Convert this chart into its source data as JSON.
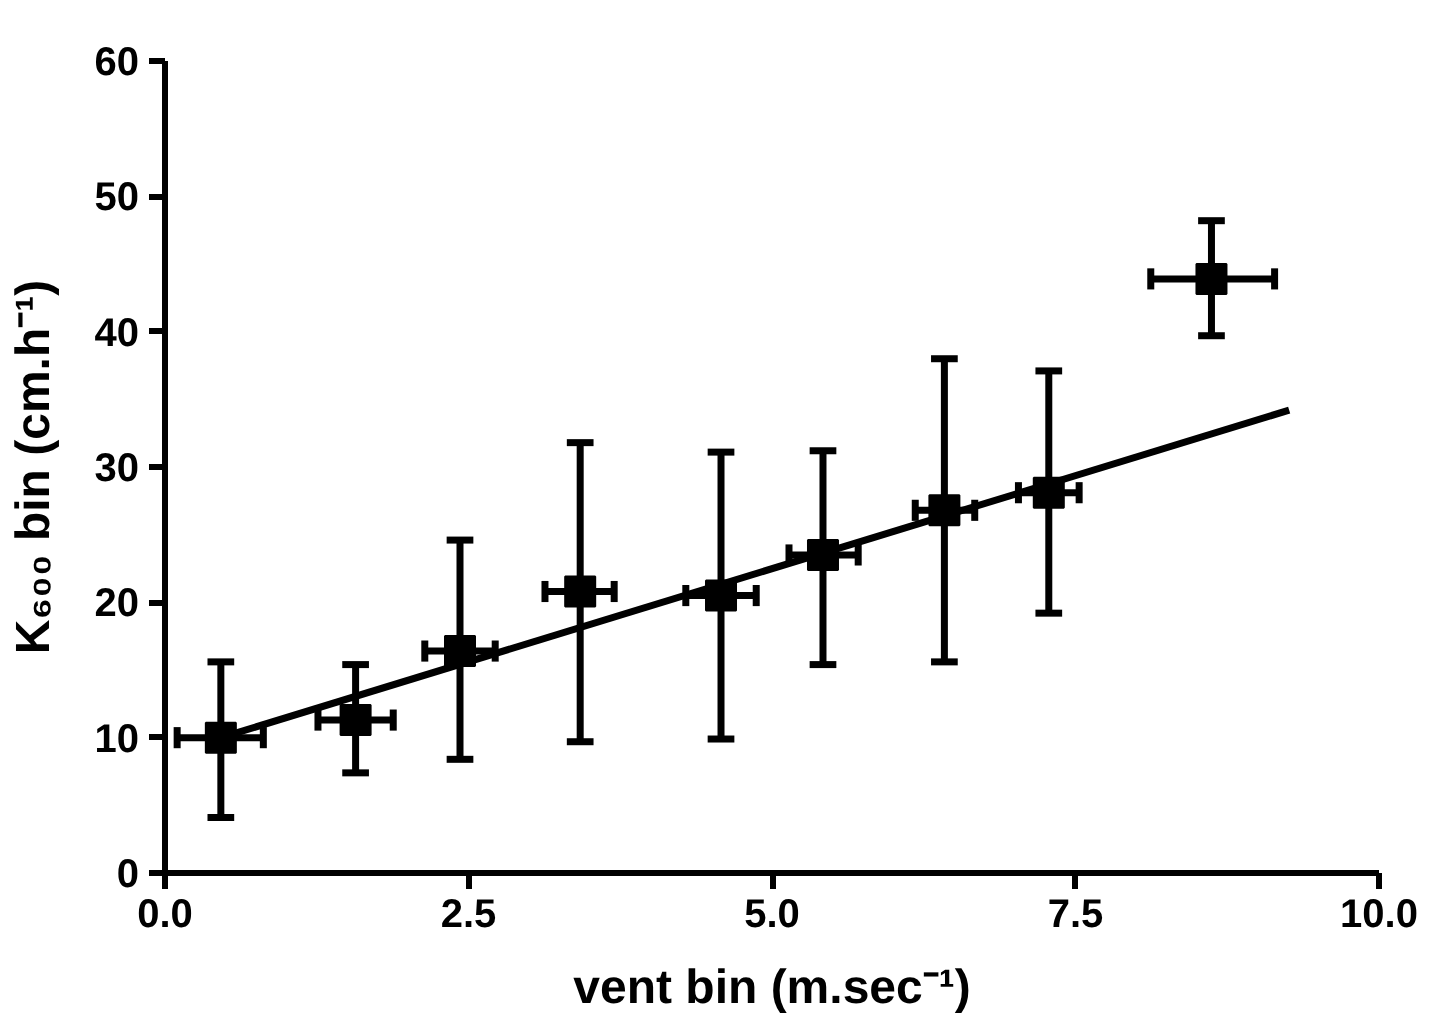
{
  "chart_data": {
    "type": "scatter",
    "xlabel": "vent bin (m.sec⁻¹)",
    "ylabel": "K₆₀₀ bin (cm.h⁻¹)",
    "xlim": [
      0,
      10
    ],
    "ylim": [
      0,
      60
    ],
    "xticks": [
      {
        "value": 0,
        "label": "0.0"
      },
      2.5,
      {
        "value": 5,
        "label": "5.0"
      },
      7.5,
      {
        "value": 10,
        "label": "10.0"
      }
    ],
    "yticks": [
      0,
      10,
      20,
      30,
      40,
      50,
      60
    ],
    "grid": false,
    "marker": "square",
    "series": [
      {
        "color": "#000000",
        "x": [
          0.46,
          1.57,
          2.43,
          3.42,
          4.58,
          5.42,
          6.42,
          7.28,
          8.62
        ],
        "values": [
          10.0,
          11.3,
          16.4,
          20.8,
          20.5,
          23.5,
          26.8,
          28.1,
          43.9
        ],
        "errors": [
          [
            4.1,
            15.6
          ],
          [
            7.4,
            15.4
          ],
          [
            8.4,
            24.6
          ],
          [
            9.7,
            31.8
          ],
          [
            9.9,
            31.1
          ],
          [
            15.4,
            31.2
          ],
          [
            15.6,
            38.0
          ],
          [
            19.2,
            37.1
          ],
          [
            39.7,
            48.2
          ]
        ],
        "xerrors": [
          [
            0.1,
            0.81
          ],
          [
            1.26,
            1.88
          ],
          [
            2.14,
            2.72
          ],
          [
            3.13,
            3.7
          ],
          [
            4.29,
            4.87
          ],
          [
            5.14,
            5.71
          ],
          [
            6.18,
            6.67
          ],
          [
            7.03,
            7.53
          ],
          [
            8.12,
            9.14
          ]
        ]
      },
      {
        "type": "line",
        "color": "#000000",
        "line_style": "solid",
        "marker": "none",
        "x": [
          0.46,
          9.26
        ],
        "values": [
          10.0,
          34.2
        ]
      }
    ]
  }
}
